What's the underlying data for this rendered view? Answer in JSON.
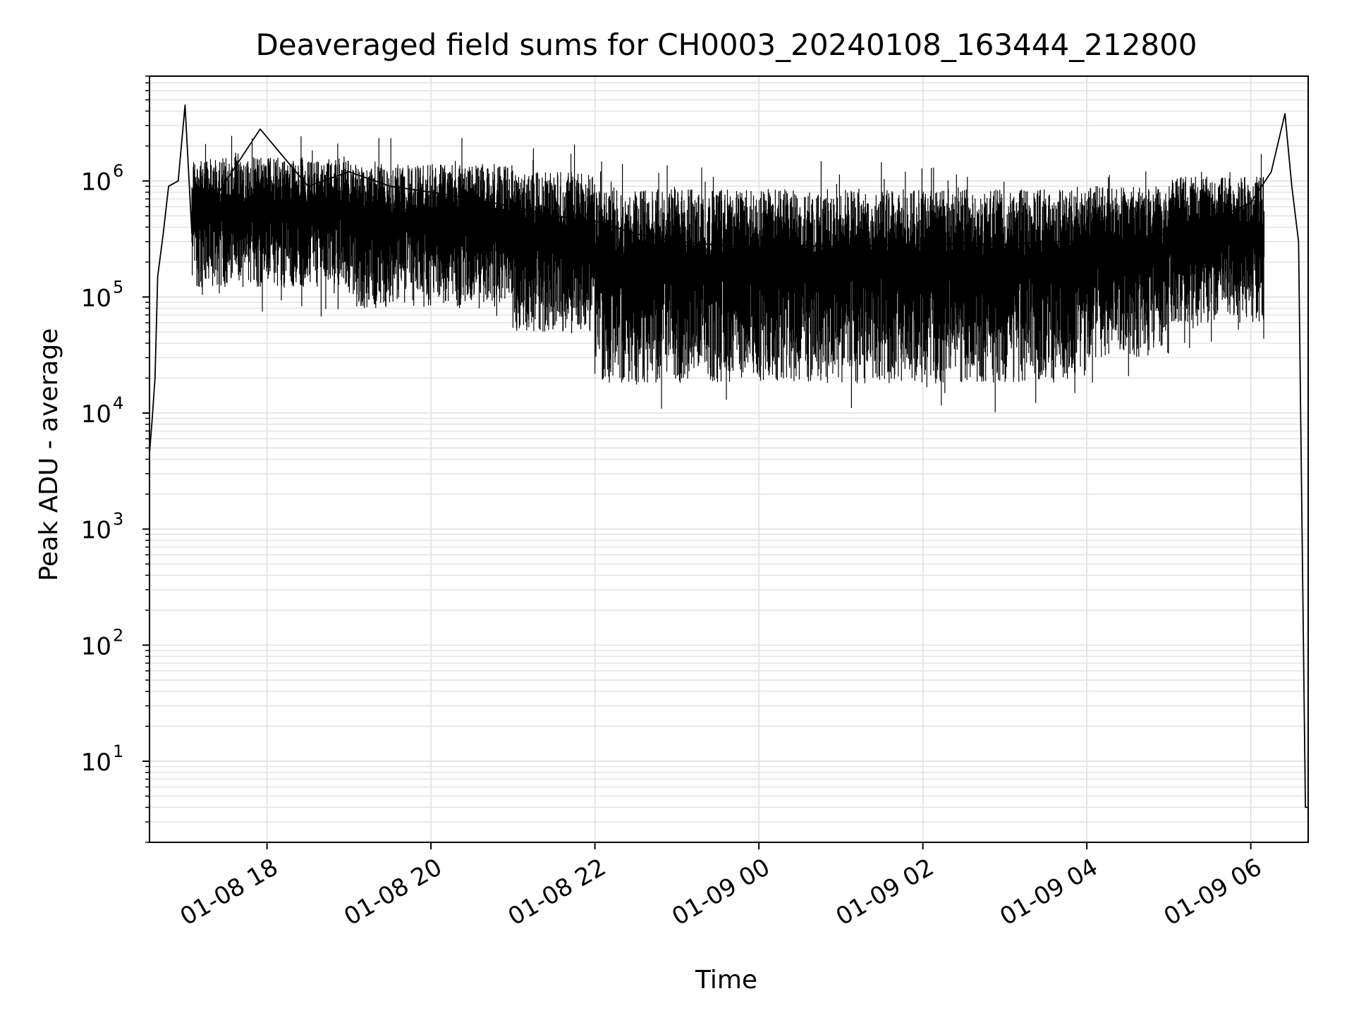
{
  "chart_data": {
    "type": "line",
    "title": "Deaveraged field sums for CH0003_20240108_163444_212800",
    "xlabel": "Time",
    "ylabel": "Peak ADU - average",
    "yscale": "log",
    "grid": "major and minor",
    "line_color": "#000000",
    "grid_color": "#e3e3e3",
    "xlim": [
      "2024-01-08 16:34",
      "2024-01-09 06:42"
    ],
    "ylim": [
      2,
      8000000
    ],
    "x_tick_labels": [
      "01-08 18",
      "01-08 20",
      "01-08 22",
      "01-09 00",
      "01-09 02",
      "01-09 04",
      "01-09 06"
    ],
    "x_ticks": [
      "2024-01-08 18:00",
      "2024-01-08 20:00",
      "2024-01-08 22:00",
      "2024-01-09 00:00",
      "2024-01-09 02:00",
      "2024-01-09 04:00",
      "2024-01-09 06:00"
    ],
    "y_ticks": [
      {
        "value": 10,
        "base": "10",
        "exp": "1"
      },
      {
        "value": 100,
        "base": "10",
        "exp": "2"
      },
      {
        "value": 1000,
        "base": "10",
        "exp": "3"
      },
      {
        "value": 10000,
        "base": "10",
        "exp": "4"
      },
      {
        "value": 100000,
        "base": "10",
        "exp": "5"
      },
      {
        "value": 1000000,
        "base": "10",
        "exp": "6"
      }
    ],
    "series": [
      {
        "points": [
          [
            "2024-01-08 16:34",
            4500
          ],
          [
            "2024-01-08 16:36",
            9000
          ],
          [
            "2024-01-08 16:38",
            20000
          ],
          [
            "2024-01-08 16:40",
            150000
          ],
          [
            "2024-01-08 16:44",
            350000
          ],
          [
            "2024-01-08 16:48",
            900000
          ],
          [
            "2024-01-08 16:55",
            1000000
          ],
          [
            "2024-01-08 17:00",
            4500000
          ],
          [
            "2024-01-08 17:05",
            350000
          ],
          [
            "2024-01-08 17:30",
            1000000
          ],
          [
            "2024-01-08 17:55",
            2800000
          ],
          [
            "2024-01-08 18:30",
            900000
          ],
          [
            "2024-01-08 19:00",
            1200000
          ],
          [
            "2024-01-08 19:30",
            900000
          ],
          [
            "2024-01-08 20:00",
            800000
          ],
          [
            "2024-01-08 20:30",
            700000
          ],
          [
            "2024-01-08 21:00",
            600000
          ],
          [
            "2024-01-08 21:30",
            500000
          ],
          [
            "2024-01-08 22:00",
            450000
          ],
          [
            "2024-01-08 22:30",
            350000
          ],
          [
            "2024-01-08 23:00",
            300000
          ],
          [
            "2024-01-08 23:30",
            280000
          ],
          [
            "2024-01-09 00:00",
            270000
          ],
          [
            "2024-01-09 00:30",
            280000
          ],
          [
            "2024-01-09 01:00",
            270000
          ],
          [
            "2024-01-09 01:30",
            280000
          ],
          [
            "2024-01-09 02:00",
            280000
          ],
          [
            "2024-01-09 02:30",
            290000
          ],
          [
            "2024-01-09 03:00",
            280000
          ],
          [
            "2024-01-09 03:30",
            300000
          ],
          [
            "2024-01-09 04:00",
            300000
          ],
          [
            "2024-01-09 04:30",
            320000
          ],
          [
            "2024-01-09 05:00",
            350000
          ],
          [
            "2024-01-09 05:30",
            450000
          ],
          [
            "2024-01-09 06:00",
            650000
          ],
          [
            "2024-01-09 06:15",
            1200000
          ],
          [
            "2024-01-09 06:25",
            3800000
          ],
          [
            "2024-01-09 06:30",
            900000
          ],
          [
            "2024-01-09 06:35",
            300000
          ],
          [
            "2024-01-09 06:40",
            4
          ],
          [
            "2024-01-09 06:42",
            4
          ]
        ],
        "band": [
          {
            "x0": "2024-01-08 17:05",
            "x1": "2024-01-08 19:00",
            "hi": 1600000,
            "lo": 120000
          },
          {
            "x0": "2024-01-08 19:00",
            "x1": "2024-01-08 21:00",
            "hi": 1400000,
            "lo": 80000
          },
          {
            "x0": "2024-01-08 21:00",
            "x1": "2024-01-08 22:00",
            "hi": 1200000,
            "lo": 50000
          },
          {
            "x0": "2024-01-08 22:00",
            "x1": "2024-01-09 04:00",
            "hi": 850000,
            "lo": 18000
          },
          {
            "x0": "2024-01-09 04:00",
            "x1": "2024-01-09 05:00",
            "hi": 900000,
            "lo": 30000
          },
          {
            "x0": "2024-01-09 05:00",
            "x1": "2024-01-09 06:10",
            "hi": 1100000,
            "lo": 60000
          }
        ]
      }
    ]
  }
}
